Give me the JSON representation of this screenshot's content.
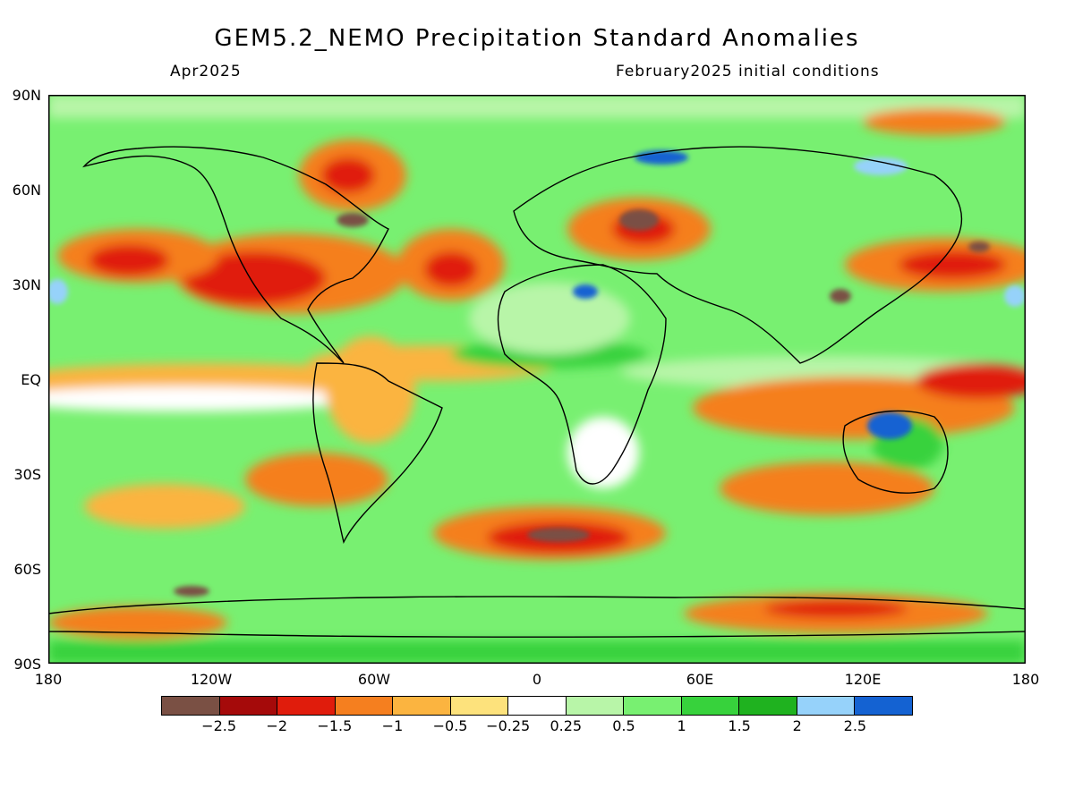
{
  "title": "GEM5.2_NEMO Precipitation Standard Anomalies",
  "subtitle_left": "Apr2025",
  "subtitle_right": "February2025 initial conditions",
  "lat_labels": [
    "90N",
    "60N",
    "30N",
    "EQ",
    "30S",
    "60S",
    "90S"
  ],
  "lon_labels": [
    "180",
    "120W",
    "60W",
    "0",
    "60E",
    "120E",
    "180"
  ],
  "colorbar": {
    "colors": [
      "#7a5044",
      "#a50a0a",
      "#e01c0c",
      "#f57f1f",
      "#fbb440",
      "#fde27c",
      "#ffffff",
      "#b8f5a8",
      "#78f071",
      "#37d23c",
      "#1fb21f",
      "#96d2fa",
      "#1462d2"
    ],
    "labels": [
      "−2.5",
      "−2",
      "−1.5",
      "−1",
      "−0.5",
      "−0.25",
      "0.25",
      "0.5",
      "1",
      "1.5",
      "2",
      "2.5"
    ]
  }
}
